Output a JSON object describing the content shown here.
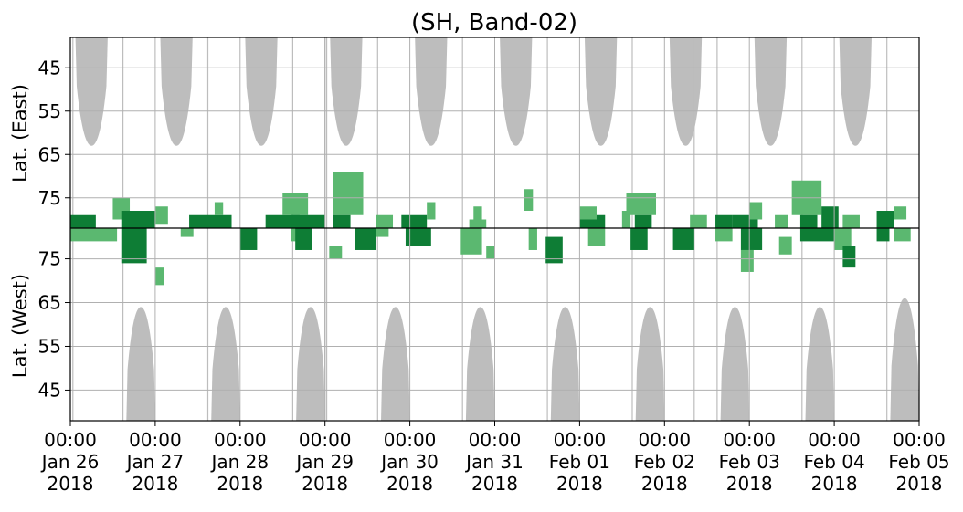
{
  "chart_data": {
    "type": "heatmap",
    "title": "(SH, Band-02)",
    "ylabel_upper": "Lat. (East)",
    "ylabel_lower": "Lat. (West)",
    "yticks_upper": [
      45,
      55,
      65,
      75
    ],
    "yticks_lower": [
      75,
      65,
      55,
      45
    ],
    "xticks": [
      {
        "time": "00:00",
        "date": "Jan 26",
        "year": "2018"
      },
      {
        "time": "00:00",
        "date": "Jan 27",
        "year": "2018"
      },
      {
        "time": "00:00",
        "date": "Jan 28",
        "year": "2018"
      },
      {
        "time": "00:00",
        "date": "Jan 29",
        "year": "2018"
      },
      {
        "time": "00:00",
        "date": "Jan 30",
        "year": "2018"
      },
      {
        "time": "00:00",
        "date": "Jan 31",
        "year": "2018"
      },
      {
        "time": "00:00",
        "date": "Feb 01",
        "year": "2018"
      },
      {
        "time": "00:00",
        "date": "Feb 02",
        "year": "2018"
      },
      {
        "time": "00:00",
        "date": "Feb 03",
        "year": "2018"
      },
      {
        "time": "00:00",
        "date": "Feb 04",
        "year": "2018"
      },
      {
        "time": "00:00",
        "date": "Feb 05",
        "year": "2018"
      }
    ],
    "x_range": [
      "2018-01-26",
      "2018-02-05"
    ],
    "y_range_upper": [
      38,
      82
    ],
    "y_range_lower": [
      82,
      38
    ],
    "grid": true,
    "colors": {
      "no_data": "#bdbdbd",
      "strong": "#0e7d35",
      "weak": "#5bb870",
      "divider": "#000000",
      "grid": "#b0b0b0"
    },
    "no_data_upper": [
      {
        "day": 0.25,
        "halfwidth": 0.19,
        "lat_min": 63
      },
      {
        "day": 1.25,
        "halfwidth": 0.19,
        "lat_min": 63
      },
      {
        "day": 2.25,
        "halfwidth": 0.19,
        "lat_min": 63
      },
      {
        "day": 3.25,
        "halfwidth": 0.19,
        "lat_min": 63
      },
      {
        "day": 4.25,
        "halfwidth": 0.19,
        "lat_min": 63
      },
      {
        "day": 5.25,
        "halfwidth": 0.19,
        "lat_min": 63
      },
      {
        "day": 6.25,
        "halfwidth": 0.19,
        "lat_min": 63
      },
      {
        "day": 7.25,
        "halfwidth": 0.19,
        "lat_min": 63
      },
      {
        "day": 8.25,
        "halfwidth": 0.19,
        "lat_min": 63
      },
      {
        "day": 9.25,
        "halfwidth": 0.19,
        "lat_min": 63
      }
    ],
    "no_data_lower": [
      {
        "day": 0.83,
        "halfwidth": 0.17,
        "lat_max": 64
      },
      {
        "day": 1.83,
        "halfwidth": 0.17,
        "lat_max": 64
      },
      {
        "day": 2.83,
        "halfwidth": 0.17,
        "lat_max": 64
      },
      {
        "day": 3.83,
        "halfwidth": 0.17,
        "lat_max": 64
      },
      {
        "day": 4.83,
        "halfwidth": 0.17,
        "lat_max": 64
      },
      {
        "day": 5.83,
        "halfwidth": 0.17,
        "lat_max": 64
      },
      {
        "day": 6.83,
        "halfwidth": 0.17,
        "lat_max": 64
      },
      {
        "day": 7.83,
        "halfwidth": 0.17,
        "lat_max": 64
      },
      {
        "day": 8.83,
        "halfwidth": 0.17,
        "lat_max": 64
      },
      {
        "day": 9.83,
        "halfwidth": 0.17,
        "lat_max": 66
      }
    ],
    "clusters_upper": [
      {
        "day0": 0.0,
        "day1": 0.3,
        "lat0": 79,
        "lat1": 82,
        "level": "strong"
      },
      {
        "day0": 0.5,
        "day1": 0.7,
        "lat0": 75,
        "lat1": 80,
        "level": "weak"
      },
      {
        "day0": 0.6,
        "day1": 1.0,
        "lat0": 78,
        "lat1": 82,
        "level": "strong"
      },
      {
        "day0": 1.0,
        "day1": 1.15,
        "lat0": 77,
        "lat1": 81,
        "level": "weak"
      },
      {
        "day0": 1.4,
        "day1": 1.9,
        "lat0": 79,
        "lat1": 82,
        "level": "strong"
      },
      {
        "day0": 1.7,
        "day1": 1.8,
        "lat0": 76,
        "lat1": 79,
        "level": "weak"
      },
      {
        "day0": 2.3,
        "day1": 2.7,
        "lat0": 79,
        "lat1": 82,
        "level": "strong"
      },
      {
        "day0": 2.5,
        "day1": 2.8,
        "lat0": 74,
        "lat1": 79,
        "level": "weak"
      },
      {
        "day0": 2.6,
        "day1": 3.0,
        "lat0": 79,
        "lat1": 82,
        "level": "strong"
      },
      {
        "day0": 3.1,
        "day1": 3.45,
        "lat0": 69,
        "lat1": 79,
        "level": "weak"
      },
      {
        "day0": 3.1,
        "day1": 3.3,
        "lat0": 79,
        "lat1": 82,
        "level": "strong"
      },
      {
        "day0": 3.6,
        "day1": 3.8,
        "lat0": 79,
        "lat1": 82,
        "level": "weak"
      },
      {
        "day0": 3.9,
        "day1": 4.2,
        "lat0": 79,
        "lat1": 82,
        "level": "strong"
      },
      {
        "day0": 4.2,
        "day1": 4.3,
        "lat0": 76,
        "lat1": 80,
        "level": "weak"
      },
      {
        "day0": 4.7,
        "day1": 4.9,
        "lat0": 80,
        "lat1": 82,
        "level": "weak"
      },
      {
        "day0": 4.75,
        "day1": 4.85,
        "lat0": 77,
        "lat1": 80,
        "level": "weak"
      },
      {
        "day0": 5.35,
        "day1": 5.45,
        "lat0": 73,
        "lat1": 78,
        "level": "weak"
      },
      {
        "day0": 6.0,
        "day1": 6.3,
        "lat0": 79,
        "lat1": 82,
        "level": "strong"
      },
      {
        "day0": 6.0,
        "day1": 6.2,
        "lat0": 77,
        "lat1": 80,
        "level": "weak"
      },
      {
        "day0": 6.5,
        "day1": 6.6,
        "lat0": 78,
        "lat1": 82,
        "level": "weak"
      },
      {
        "day0": 6.55,
        "day1": 6.9,
        "lat0": 74,
        "lat1": 79,
        "level": "weak"
      },
      {
        "day0": 6.65,
        "day1": 6.85,
        "lat0": 79,
        "lat1": 82,
        "level": "strong"
      },
      {
        "day0": 7.3,
        "day1": 7.5,
        "lat0": 79,
        "lat1": 82,
        "level": "weak"
      },
      {
        "day0": 7.6,
        "day1": 7.8,
        "lat0": 79,
        "lat1": 82,
        "level": "strong"
      },
      {
        "day0": 7.8,
        "day1": 8.1,
        "lat0": 79,
        "lat1": 82,
        "level": "strong"
      },
      {
        "day0": 8.0,
        "day1": 8.15,
        "lat0": 76,
        "lat1": 80,
        "level": "weak"
      },
      {
        "day0": 8.3,
        "day1": 8.45,
        "lat0": 79,
        "lat1": 82,
        "level": "weak"
      },
      {
        "day0": 8.5,
        "day1": 8.85,
        "lat0": 71,
        "lat1": 79,
        "level": "weak"
      },
      {
        "day0": 8.6,
        "day1": 8.8,
        "lat0": 79,
        "lat1": 82,
        "level": "strong"
      },
      {
        "day0": 8.85,
        "day1": 9.05,
        "lat0": 77,
        "lat1": 82,
        "level": "strong"
      },
      {
        "day0": 9.1,
        "day1": 9.3,
        "lat0": 79,
        "lat1": 82,
        "level": "weak"
      },
      {
        "day0": 9.5,
        "day1": 9.7,
        "lat0": 78,
        "lat1": 82,
        "level": "strong"
      },
      {
        "day0": 9.7,
        "day1": 9.85,
        "lat0": 77,
        "lat1": 80,
        "level": "weak"
      }
    ],
    "clusters_lower": [
      {
        "day0": 0.0,
        "day1": 0.55,
        "lat0": 79,
        "lat1": 82,
        "level": "weak"
      },
      {
        "day0": 0.6,
        "day1": 0.9,
        "lat0": 74,
        "lat1": 82,
        "level": "strong"
      },
      {
        "day0": 1.0,
        "day1": 1.1,
        "lat0": 69,
        "lat1": 73,
        "level": "weak"
      },
      {
        "day0": 1.3,
        "day1": 1.45,
        "lat0": 80,
        "lat1": 82,
        "level": "weak"
      },
      {
        "day0": 2.0,
        "day1": 2.2,
        "lat0": 77,
        "lat1": 82,
        "level": "strong"
      },
      {
        "day0": 2.6,
        "day1": 2.7,
        "lat0": 79,
        "lat1": 82,
        "level": "weak"
      },
      {
        "day0": 2.65,
        "day1": 2.85,
        "lat0": 77,
        "lat1": 82,
        "level": "strong"
      },
      {
        "day0": 3.05,
        "day1": 3.2,
        "lat0": 75,
        "lat1": 78,
        "level": "weak"
      },
      {
        "day0": 3.35,
        "day1": 3.6,
        "lat0": 77,
        "lat1": 82,
        "level": "strong"
      },
      {
        "day0": 3.6,
        "day1": 3.75,
        "lat0": 80,
        "lat1": 82,
        "level": "weak"
      },
      {
        "day0": 3.95,
        "day1": 4.25,
        "lat0": 78,
        "lat1": 82,
        "level": "strong"
      },
      {
        "day0": 4.6,
        "day1": 4.85,
        "lat0": 76,
        "lat1": 82,
        "level": "weak"
      },
      {
        "day0": 4.9,
        "day1": 5.0,
        "lat0": 75,
        "lat1": 78,
        "level": "weak"
      },
      {
        "day0": 5.4,
        "day1": 5.5,
        "lat0": 77,
        "lat1": 82,
        "level": "weak"
      },
      {
        "day0": 5.6,
        "day1": 5.8,
        "lat0": 74,
        "lat1": 80,
        "level": "strong"
      },
      {
        "day0": 6.1,
        "day1": 6.3,
        "lat0": 78,
        "lat1": 82,
        "level": "weak"
      },
      {
        "day0": 6.6,
        "day1": 6.8,
        "lat0": 77,
        "lat1": 82,
        "level": "strong"
      },
      {
        "day0": 7.1,
        "day1": 7.35,
        "lat0": 77,
        "lat1": 82,
        "level": "strong"
      },
      {
        "day0": 7.6,
        "day1": 7.8,
        "lat0": 79,
        "lat1": 82,
        "level": "weak"
      },
      {
        "day0": 7.9,
        "day1": 8.15,
        "lat0": 77,
        "lat1": 82,
        "level": "strong"
      },
      {
        "day0": 7.9,
        "day1": 8.05,
        "lat0": 72,
        "lat1": 77,
        "level": "weak"
      },
      {
        "day0": 8.35,
        "day1": 8.5,
        "lat0": 76,
        "lat1": 80,
        "level": "weak"
      },
      {
        "day0": 8.6,
        "day1": 9.0,
        "lat0": 79,
        "lat1": 82,
        "level": "strong"
      },
      {
        "day0": 9.0,
        "day1": 9.2,
        "lat0": 77,
        "lat1": 82,
        "level": "weak"
      },
      {
        "day0": 9.1,
        "day1": 9.25,
        "lat0": 73,
        "lat1": 78,
        "level": "strong"
      },
      {
        "day0": 9.5,
        "day1": 9.65,
        "lat0": 79,
        "lat1": 82,
        "level": "strong"
      },
      {
        "day0": 9.7,
        "day1": 9.9,
        "lat0": 79,
        "lat1": 82,
        "level": "weak"
      }
    ]
  }
}
